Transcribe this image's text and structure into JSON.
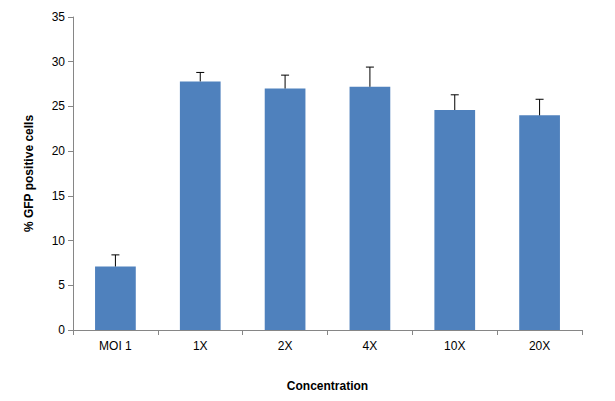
{
  "chart_data": {
    "type": "bar",
    "x_label": "Concentration",
    "y_label": "% GFP positive cells",
    "categories": [
      "MOI 1",
      "1X",
      "2X",
      "4X",
      "10X",
      "20X"
    ],
    "values": [
      7.1,
      27.8,
      27.0,
      27.2,
      24.6,
      24.0
    ],
    "errors": [
      1.3,
      1.0,
      1.5,
      2.2,
      1.7,
      1.8
    ],
    "color": "#4f81bd",
    "ylim": [
      0,
      35
    ],
    "yticks": [
      0,
      5,
      10,
      15,
      20,
      25,
      30,
      35
    ],
    "grid": false
  }
}
